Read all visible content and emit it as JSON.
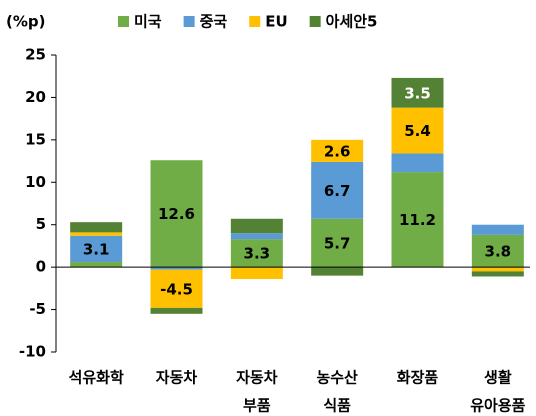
{
  "chart_data": {
    "type": "stacked_bar",
    "y_axis_label": "(%p)",
    "categories": [
      [
        "석유화학"
      ],
      [
        "자동차"
      ],
      [
        "자동차",
        "부품"
      ],
      [
        "농수산",
        "식품"
      ],
      [
        "화장품"
      ],
      [
        "생활",
        "유아용품"
      ]
    ],
    "series": [
      {
        "name": "미국",
        "color": "#70ad47",
        "values": [
          0.6,
          12.6,
          3.3,
          5.7,
          11.2,
          3.8
        ],
        "value_labels": [
          null,
          "12.6",
          "3.3",
          "5.7",
          "11.2",
          "3.8"
        ],
        "label_color": "#000000"
      },
      {
        "name": "중국",
        "color": "#5b9bd5",
        "values": [
          3.1,
          -0.3,
          0.7,
          6.7,
          2.2,
          1.2
        ],
        "value_labels": [
          "3.1",
          null,
          null,
          "6.7",
          null,
          null
        ],
        "label_color": "#000000"
      },
      {
        "name": "EU",
        "color": "#ffc000",
        "values": [
          0.4,
          -4.5,
          -1.4,
          2.6,
          5.4,
          -0.5
        ],
        "value_labels": [
          null,
          "-4.5",
          null,
          "2.6",
          "5.4",
          null
        ],
        "label_color": "#000000"
      },
      {
        "name": "아세안5",
        "color": "#548235",
        "values": [
          1.2,
          -0.7,
          1.7,
          -1.0,
          3.5,
          -0.6
        ],
        "value_labels": [
          null,
          null,
          null,
          null,
          "3.5",
          null
        ],
        "label_color": "#ffffff"
      }
    ],
    "ylim": [
      -10,
      25
    ],
    "yticks": [
      -10,
      -5,
      0,
      5,
      10,
      15,
      20,
      25
    ],
    "legend": "top",
    "grid": false
  }
}
